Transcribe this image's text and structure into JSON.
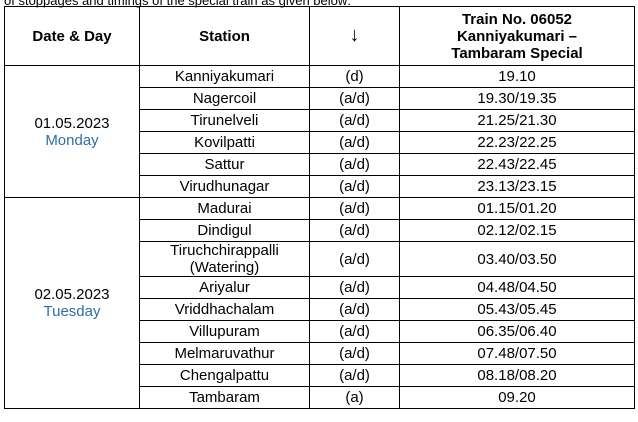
{
  "note_line": "of stoppages and timings of the special train as given below:",
  "header": {
    "date_day": "Date & Day",
    "station": "Station",
    "arrow": "↓",
    "train_line1": "Train No. 06052",
    "train_line2": "Kanniyakumari –",
    "train_line3": "Tambaram Special"
  },
  "groups": [
    {
      "date": "01.05.2023",
      "day": "Monday",
      "rows": [
        {
          "station": "Kanniyakumari",
          "type": "(d)",
          "time": "19.10"
        },
        {
          "station": "Nagercoil",
          "type": "(a/d)",
          "time": "19.30/19.35"
        },
        {
          "station": "Tirunelveli",
          "type": "(a/d)",
          "time": "21.25/21.30"
        },
        {
          "station": "Kovilpatti",
          "type": "(a/d)",
          "time": "22.23/22.25"
        },
        {
          "station": "Sattur",
          "type": "(a/d)",
          "time": "22.43/22.45"
        },
        {
          "station": "Virudhunagar",
          "type": "(a/d)",
          "time": "23.13/23.15"
        }
      ]
    },
    {
      "date": "02.05.2023",
      "day": "Tuesday",
      "rows": [
        {
          "station": "Madurai",
          "type": "(a/d)",
          "time": "01.15/01.20"
        },
        {
          "station": "Dindigul",
          "type": "(a/d)",
          "time": "02.12/02.15"
        },
        {
          "station": "Tiruchchirappalli",
          "station_line2": "(Watering)",
          "type": "(a/d)",
          "time": "03.40/03.50"
        },
        {
          "station": "Ariyalur",
          "type": "(a/d)",
          "time": "04.48/04.50"
        },
        {
          "station": "Vriddhachalam",
          "type": "(a/d)",
          "time": "05.43/05.45"
        },
        {
          "station": "Villupuram",
          "type": "(a/d)",
          "time": "06.35/06.40"
        },
        {
          "station": "Melmaruvathur",
          "type": "(a/d)",
          "time": "07.48/07.50"
        },
        {
          "station": "Chengalpattu",
          "type": "(a/d)",
          "time": "08.18/08.20"
        },
        {
          "station": "Tambaram",
          "type": "(a)",
          "time": "09.20"
        }
      ]
    }
  ],
  "colors": {
    "day_text": "#2e6da4"
  }
}
